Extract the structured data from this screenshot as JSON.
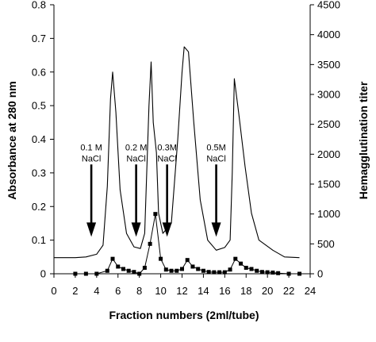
{
  "chart_data": {
    "type": "line",
    "xlabel": "Fraction numbers (2ml/tube)",
    "ylabel_left": "Absorbance at 280 nm",
    "ylabel_right": "Hemagglutination titer",
    "xlim": [
      0,
      24
    ],
    "ylim_left": [
      0,
      0.8
    ],
    "ylim_right": [
      0,
      4500
    ],
    "x_ticks": [
      0,
      2,
      4,
      6,
      8,
      10,
      12,
      14,
      16,
      18,
      20,
      22,
      24
    ],
    "y_left_ticks": [
      0,
      0.1,
      0.2,
      0.3,
      0.4,
      0.5,
      0.6,
      0.7,
      0.8
    ],
    "y_right_ticks": [
      0,
      500,
      1000,
      1500,
      2000,
      2500,
      3000,
      3500,
      4000,
      4500
    ],
    "grid": false,
    "series": [
      {
        "axis": "left",
        "style": "line",
        "values": [
          [
            0,
            0.048
          ],
          [
            2,
            0.048
          ],
          [
            3,
            0.05
          ],
          [
            4,
            0.058
          ],
          [
            4.6,
            0.085
          ],
          [
            5,
            0.26
          ],
          [
            5.3,
            0.52
          ],
          [
            5.5,
            0.6
          ],
          [
            5.8,
            0.48
          ],
          [
            6.2,
            0.25
          ],
          [
            6.8,
            0.12
          ],
          [
            7.5,
            0.08
          ],
          [
            8.1,
            0.075
          ],
          [
            8.5,
            0.12
          ],
          [
            8.9,
            0.5
          ],
          [
            9.1,
            0.63
          ],
          [
            9.3,
            0.45
          ],
          [
            9.6,
            0.36
          ],
          [
            9.8,
            0.18
          ],
          [
            10.2,
            0.12
          ],
          [
            11,
            0.15
          ],
          [
            11.6,
            0.4
          ],
          [
            12,
            0.6
          ],
          [
            12.2,
            0.675
          ],
          [
            12.6,
            0.66
          ],
          [
            13.1,
            0.45
          ],
          [
            13.7,
            0.22
          ],
          [
            14.4,
            0.1
          ],
          [
            15.2,
            0.07
          ],
          [
            16,
            0.078
          ],
          [
            16.5,
            0.1
          ],
          [
            16.7,
            0.3
          ],
          [
            16.9,
            0.58
          ],
          [
            17.3,
            0.48
          ],
          [
            17.9,
            0.32
          ],
          [
            18.5,
            0.18
          ],
          [
            19.2,
            0.1
          ],
          [
            20.5,
            0.07
          ],
          [
            21.6,
            0.05
          ],
          [
            23,
            0.048
          ]
        ]
      },
      {
        "axis": "right",
        "style": "markers",
        "values": [
          [
            2,
            0
          ],
          [
            3,
            0
          ],
          [
            4,
            0
          ],
          [
            5,
            50
          ],
          [
            5.5,
            250
          ],
          [
            6,
            120
          ],
          [
            6.5,
            80
          ],
          [
            7,
            50
          ],
          [
            7.5,
            30
          ],
          [
            8,
            0
          ],
          [
            8.5,
            100
          ],
          [
            9,
            500
          ],
          [
            9.5,
            1000
          ],
          [
            10,
            250
          ],
          [
            10.5,
            70
          ],
          [
            11,
            50
          ],
          [
            11.5,
            50
          ],
          [
            12,
            80
          ],
          [
            12.5,
            230
          ],
          [
            13,
            120
          ],
          [
            13.5,
            80
          ],
          [
            14,
            50
          ],
          [
            14.5,
            30
          ],
          [
            15,
            25
          ],
          [
            15.5,
            25
          ],
          [
            16,
            25
          ],
          [
            16.5,
            70
          ],
          [
            17,
            250
          ],
          [
            17.5,
            170
          ],
          [
            18,
            100
          ],
          [
            18.5,
            80
          ],
          [
            19,
            50
          ],
          [
            19.5,
            30
          ],
          [
            20,
            25
          ],
          [
            20.5,
            20
          ],
          [
            21,
            10
          ],
          [
            22,
            0
          ],
          [
            23,
            0
          ]
        ]
      }
    ],
    "annotations": [
      {
        "x": 3.5,
        "y_top": 0.325,
        "y_bottom": 0.11,
        "lines": [
          "0.1 M",
          "NaCl"
        ]
      },
      {
        "x": 7.7,
        "y_top": 0.325,
        "y_bottom": 0.11,
        "lines": [
          "0.2 M",
          "NaCl"
        ]
      },
      {
        "x": 10.6,
        "y_top": 0.325,
        "y_bottom": 0.11,
        "lines": [
          "0.3M",
          "NaCl"
        ]
      },
      {
        "x": 15.2,
        "y_top": 0.325,
        "y_bottom": 0.11,
        "lines": [
          "0.5M",
          "NaCl"
        ]
      }
    ]
  }
}
